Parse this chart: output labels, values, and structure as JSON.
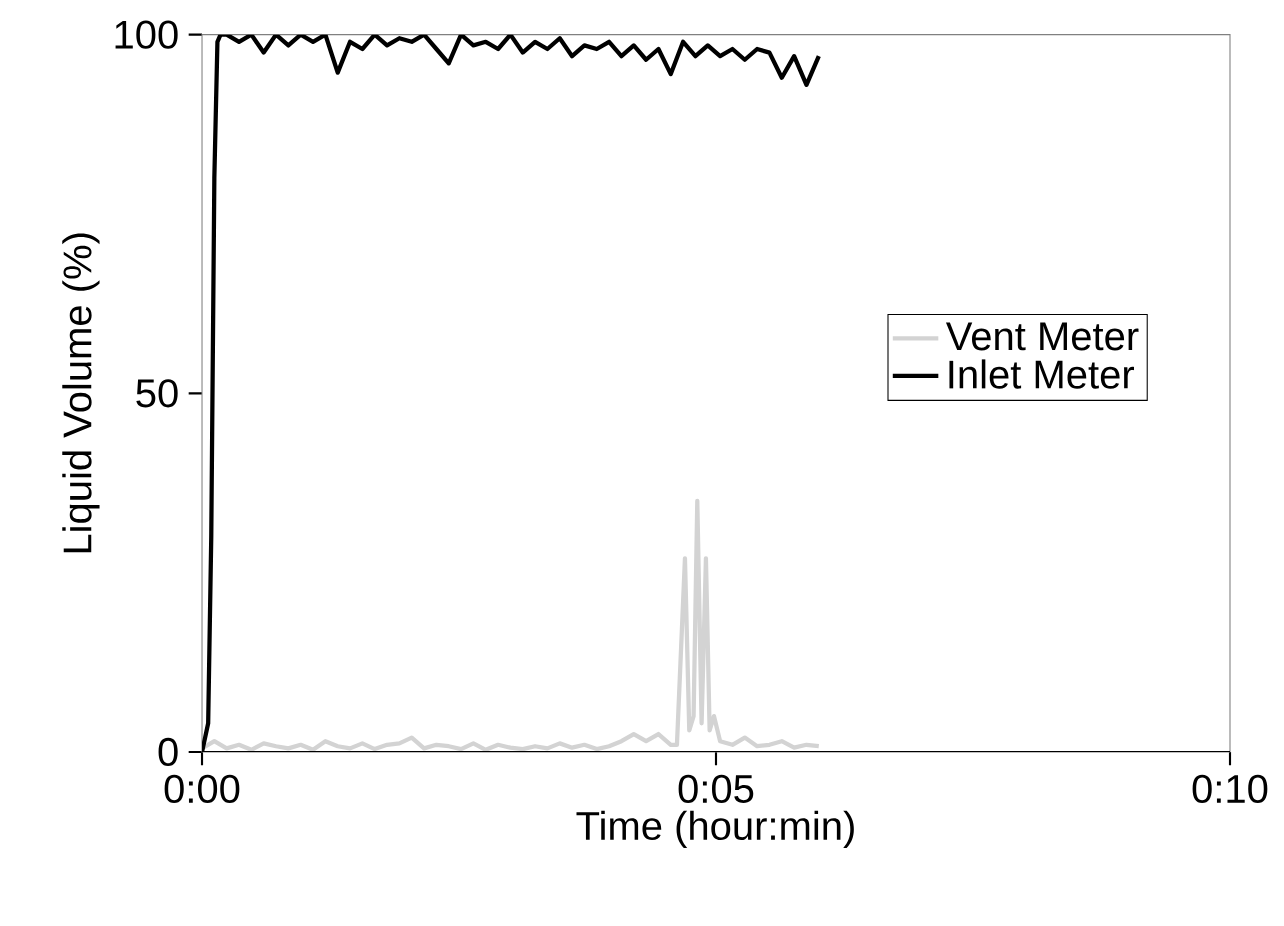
{
  "chart_data": {
    "type": "line",
    "xlabel": "Time (hour:min)",
    "ylabel": "Liquid Volume (%)",
    "xlim": [
      0,
      0.166667
    ],
    "ylim": [
      0,
      100
    ],
    "xticks": [
      {
        "value": 0,
        "label": "0:00"
      },
      {
        "value": 0.083333,
        "label": "0:05"
      },
      {
        "value": 0.166667,
        "label": "0:10"
      }
    ],
    "yticks": [
      0,
      50,
      100
    ],
    "grid": false,
    "legend": "right",
    "marker": "none",
    "line_style": "solid",
    "series": [
      {
        "name": "Vent Meter",
        "color": "#d3d3d3",
        "x": [
          0,
          0.002,
          0.004,
          0.006,
          0.008,
          0.01,
          0.012,
          0.014,
          0.016,
          0.018,
          0.02,
          0.022,
          0.024,
          0.026,
          0.028,
          0.03,
          0.032,
          0.034,
          0.036,
          0.038,
          0.04,
          0.042,
          0.044,
          0.046,
          0.048,
          0.05,
          0.052,
          0.054,
          0.056,
          0.058,
          0.06,
          0.062,
          0.064,
          0.066,
          0.068,
          0.07,
          0.072,
          0.074,
          0.076,
          0.077,
          0.0777,
          0.0783,
          0.079,
          0.0797,
          0.0803,
          0.081,
          0.0817,
          0.0823,
          0.083,
          0.084,
          0.086,
          0.088,
          0.09,
          0.092,
          0.094,
          0.096,
          0.098,
          0.1
        ],
        "values": [
          0.5,
          1.5,
          0.5,
          1,
          0.3,
          1.2,
          0.8,
          0.5,
          1,
          0.3,
          1.5,
          0.8,
          0.5,
          1.2,
          0.4,
          1,
          1.2,
          2,
          0.5,
          1,
          0.8,
          0.4,
          1.2,
          0.3,
          1,
          0.6,
          0.4,
          0.8,
          0.5,
          1.2,
          0.6,
          1,
          0.4,
          0.8,
          1.5,
          2.5,
          1.5,
          2.5,
          1,
          1,
          15,
          27,
          3,
          5,
          35,
          4,
          27,
          3,
          5,
          1.5,
          1,
          2,
          0.8,
          1,
          1.5,
          0.6,
          1,
          0.8
        ]
      },
      {
        "name": "Inlet Meter",
        "color": "#000000",
        "x": [
          0,
          0.001,
          0.0015,
          0.002,
          0.0025,
          0.003,
          0.004,
          0.006,
          0.008,
          0.01,
          0.012,
          0.014,
          0.016,
          0.018,
          0.02,
          0.022,
          0.024,
          0.026,
          0.028,
          0.03,
          0.032,
          0.034,
          0.036,
          0.038,
          0.04,
          0.042,
          0.044,
          0.046,
          0.048,
          0.05,
          0.052,
          0.054,
          0.056,
          0.058,
          0.06,
          0.062,
          0.064,
          0.066,
          0.068,
          0.07,
          0.072,
          0.074,
          0.076,
          0.078,
          0.08,
          0.082,
          0.084,
          0.086,
          0.088,
          0.09,
          0.092,
          0.094,
          0.096,
          0.098,
          0.1
        ],
        "values": [
          0,
          4,
          30,
          80,
          99,
          100,
          100,
          99,
          100,
          97.5,
          100,
          98.5,
          100,
          99,
          100,
          94.7,
          99,
          98,
          100,
          98.5,
          99.5,
          99,
          100,
          98,
          96,
          100,
          98.5,
          99,
          98,
          100,
          97.5,
          99,
          98,
          99.5,
          97,
          98.5,
          98,
          99,
          97,
          98.5,
          96.5,
          98,
          94.5,
          99,
          97,
          98.5,
          97,
          98,
          96.5,
          98,
          97.5,
          94,
          97,
          93,
          97
        ]
      }
    ]
  }
}
